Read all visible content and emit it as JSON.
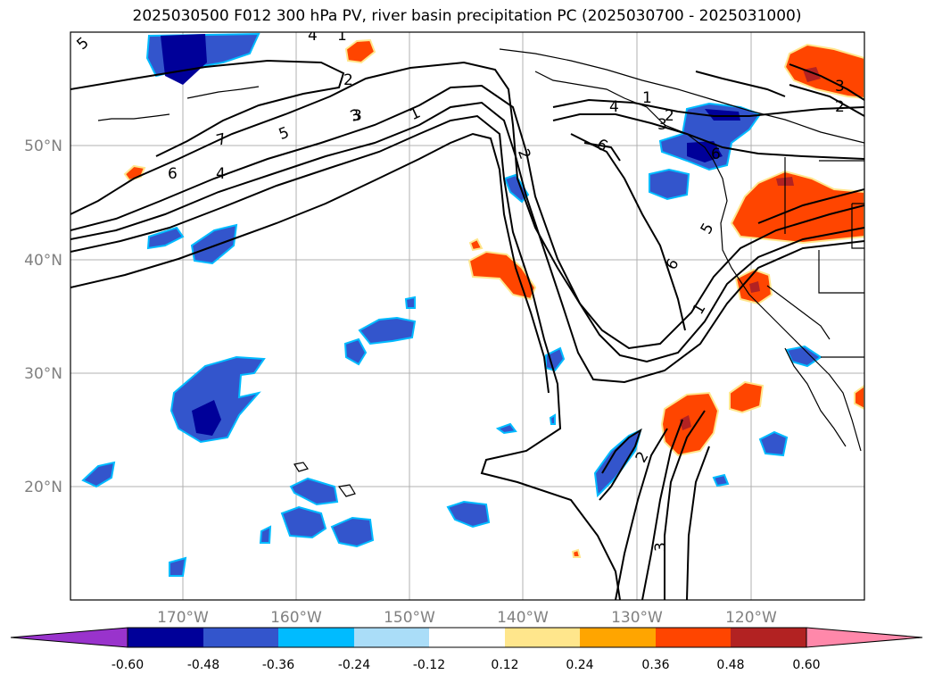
{
  "title": "2025030500 F012 300 hPa PV, river basin precipitation PC (2025030700 - 2025031000)",
  "lon_ticks": [
    "170°W",
    "160°W",
    "150°W",
    "140°W",
    "130°W",
    "120°W"
  ],
  "lat_ticks": [
    "20°N",
    "30°N",
    "40°N",
    "50°N"
  ],
  "colorbar": {
    "bounds": [
      "-0.60",
      "-0.48",
      "-0.36",
      "-0.24",
      "-0.12",
      "0.12",
      "0.24",
      "0.36",
      "0.48",
      "0.60"
    ],
    "colors": [
      "#9933cc",
      "#000099",
      "#3355cc",
      "#00bbff",
      "#aaddf8",
      "#ffffff",
      "#ffe68c",
      "#ffa500",
      "#ff4500",
      "#b22222",
      "#ff88aa"
    ]
  },
  "contour_labels": [
    "5",
    "4",
    "1",
    "3",
    "2",
    "7",
    "5",
    "3",
    "1",
    "6",
    "4",
    "2",
    "6",
    "1",
    "4",
    "2",
    "3",
    "6",
    "5",
    "6",
    "1",
    "3",
    "2",
    "2",
    "3"
  ],
  "legend": {
    "negative_colors": [
      "#000099",
      "#3355cc",
      "#00bbff",
      "#aaddf8"
    ],
    "positive_colors": [
      "#ffe68c",
      "#ffa500",
      "#ff4500",
      "#b22222"
    ]
  }
}
